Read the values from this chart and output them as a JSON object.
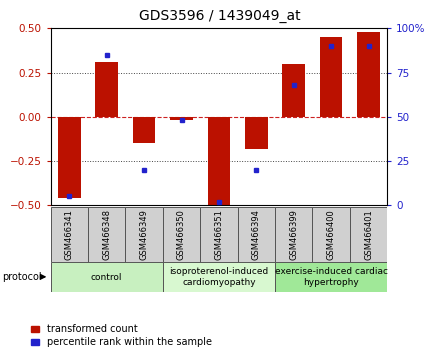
{
  "title": "GDS3596 / 1439049_at",
  "samples": [
    "GSM466341",
    "GSM466348",
    "GSM466349",
    "GSM466350",
    "GSM466351",
    "GSM466394",
    "GSM466399",
    "GSM466400",
    "GSM466401"
  ],
  "transformed_count": [
    -0.46,
    0.31,
    -0.15,
    -0.02,
    -0.5,
    -0.18,
    0.3,
    0.45,
    0.48
  ],
  "percentile_rank": [
    5,
    85,
    20,
    48,
    2,
    20,
    68,
    90,
    90
  ],
  "groups": [
    {
      "label": "control",
      "start": 0,
      "end": 3,
      "color": "#c8f0c0"
    },
    {
      "label": "isoproterenol-induced\ncardiomyopathy",
      "start": 3,
      "end": 6,
      "color": "#d8f8d0"
    },
    {
      "label": "exercise-induced cardiac\nhypertrophy",
      "start": 6,
      "end": 9,
      "color": "#a0e898"
    }
  ],
  "ylim_left": [
    -0.5,
    0.5
  ],
  "ylim_right": [
    0,
    100
  ],
  "yticks_left": [
    -0.5,
    -0.25,
    0.0,
    0.25,
    0.5
  ],
  "yticks_right": [
    0,
    25,
    50,
    75,
    100
  ],
  "bar_color": "#bb1100",
  "dot_color": "#2222cc",
  "zero_line_color": "#cc2222",
  "bg_color": "#ffffff",
  "title_fontsize": 10,
  "tick_fontsize": 7.5,
  "sample_fontsize": 6,
  "group_fontsize": 6.5,
  "legend_fontsize": 7,
  "legend_label_transformed": "transformed count",
  "legend_label_percentile": "percentile rank within the sample",
  "sample_box_color": "#d0d0d0",
  "protocol_label": "protocol"
}
